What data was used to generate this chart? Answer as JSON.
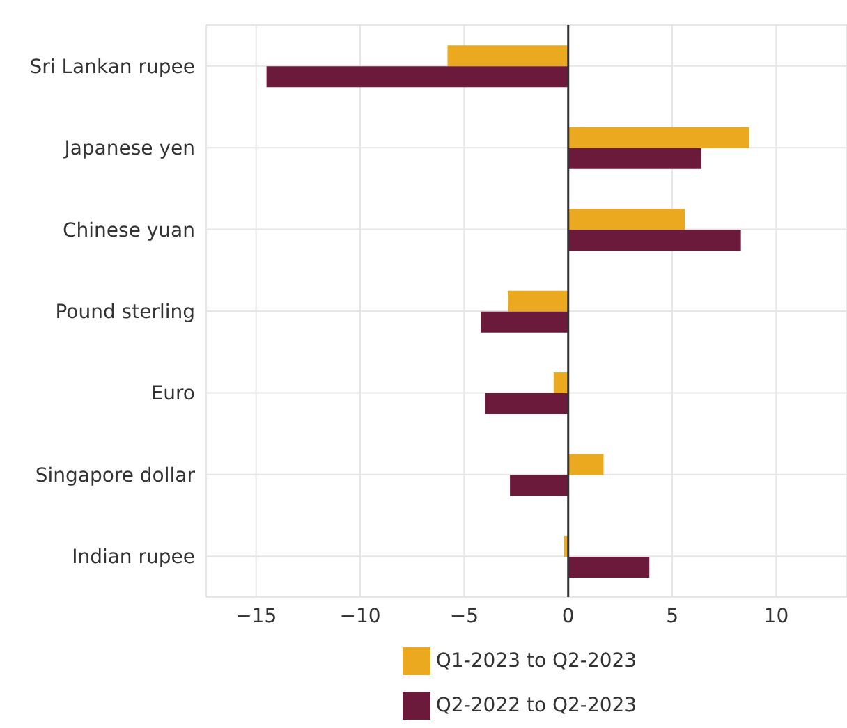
{
  "chart_data": {
    "type": "bar",
    "orientation": "horizontal",
    "categories": [
      "Sri Lankan rupee",
      "Japanese yen",
      "Chinese yuan",
      "Pound sterling",
      "Euro",
      "Singapore dollar",
      "Indian rupee"
    ],
    "series": [
      {
        "name": "Q1-2023 to Q2-2023",
        "color": "#eaa91f",
        "values": [
          -5.8,
          8.7,
          5.6,
          -2.9,
          -0.7,
          1.7,
          -0.2
        ]
      },
      {
        "name": "Q2-2022 to Q2-2023",
        "color": "#6b1a3c",
        "values": [
          -14.5,
          6.4,
          8.3,
          -4.2,
          -4.0,
          -2.8,
          3.9
        ]
      }
    ],
    "xlim": [
      -17.4,
      13.4
    ],
    "xticks": [
      -15,
      -10,
      -5,
      0,
      5,
      10
    ],
    "grid": true,
    "legend": "bottom",
    "ref_lines": [
      {
        "axis": "x",
        "value": 0,
        "color": "#333333"
      }
    ]
  }
}
